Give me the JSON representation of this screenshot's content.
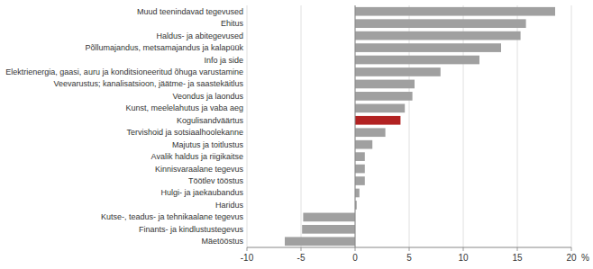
{
  "chart_data": {
    "type": "bar",
    "orientation": "horizontal",
    "categories": [
      "Muud teenindavad tegevused",
      "Ehitus",
      "Haldus- ja abitegevused",
      "Põllumajandus, metsamajandus ja kalapüük",
      "Info ja side",
      "Elektrienergia, gaasi, auru ja konditsioneeritud õhuga varustamine",
      "Veevarustus; kanalisatsioon, jäätme- ja saastekäitlus",
      "Veondus ja laondus",
      "Kunst, meelelahutus ja vaba aeg",
      "Kogulisandväärtus",
      "Tervishoid ja sotsiaalhoolekanne",
      "Majutus ja toitlustus",
      "Avalik haldus ja riigikaitse",
      "Kinnisvaraalane tegevus",
      "Töötlev tööstus",
      "Hulgi- ja jaekaubandus",
      "Haridus",
      "Kutse-, teadus- ja tehnikaalane tegevus",
      "Finants- ja kindlustustegevus",
      "Mäetööstus"
    ],
    "values": [
      18.5,
      15.8,
      15.3,
      13.5,
      11.5,
      7.9,
      5.5,
      5.3,
      4.6,
      4.2,
      2.8,
      1.6,
      0.9,
      0.9,
      0.9,
      0.4,
      0.15,
      -4.8,
      -4.9,
      -6.5
    ],
    "colors": [
      "#a0a0a0",
      "#a0a0a0",
      "#a0a0a0",
      "#a0a0a0",
      "#a0a0a0",
      "#a0a0a0",
      "#a0a0a0",
      "#a0a0a0",
      "#a0a0a0",
      "#b22222",
      "#a0a0a0",
      "#a0a0a0",
      "#a0a0a0",
      "#a0a0a0",
      "#a0a0a0",
      "#a0a0a0",
      "#a0a0a0",
      "#a0a0a0",
      "#a0a0a0",
      "#a0a0a0"
    ],
    "x_label": "%",
    "xlim": [
      -10,
      20
    ],
    "xticks": [
      -10,
      -5,
      0,
      5,
      10,
      15,
      20
    ],
    "grid": true
  }
}
